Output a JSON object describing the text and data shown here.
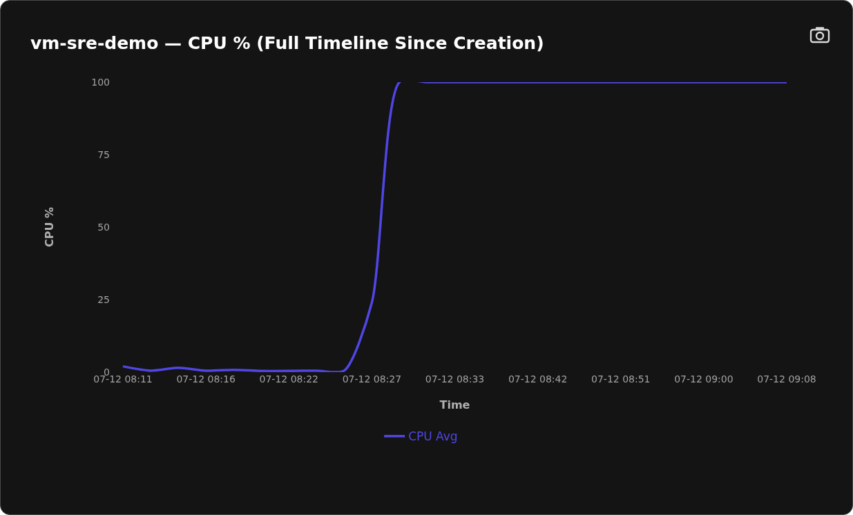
{
  "chart_data": {
    "type": "line",
    "title": "vm-sre-demo — CPU % (Full Timeline Since Creation)",
    "xlabel": "Time",
    "ylabel": "CPU %",
    "categories": [
      "07-12 08:11",
      null,
      null,
      "07-12 08:16",
      null,
      null,
      "07-12 08:22",
      null,
      null,
      "07-12 08:27",
      null,
      null,
      "07-12 08:33",
      null,
      null,
      "07-12 08:42",
      null,
      null,
      "07-12 08:51",
      null,
      null,
      "07-12 09:00",
      null,
      null,
      "07-12 09:08"
    ],
    "series": [
      {
        "name": "CPU Avg",
        "color": "#5046e5",
        "values": [
          2.0,
          0.5,
          1.5,
          0.5,
          0.8,
          0.4,
          0.4,
          0.5,
          0.5,
          24,
          100,
          100,
          100,
          100,
          100,
          100,
          100,
          100,
          100,
          100,
          100,
          100,
          100,
          100,
          100
        ]
      }
    ],
    "ylim": [
      0,
      100
    ],
    "yticks": [
      0,
      25,
      50,
      75,
      100
    ],
    "legend": "bottom",
    "line_style": "solid"
  }
}
